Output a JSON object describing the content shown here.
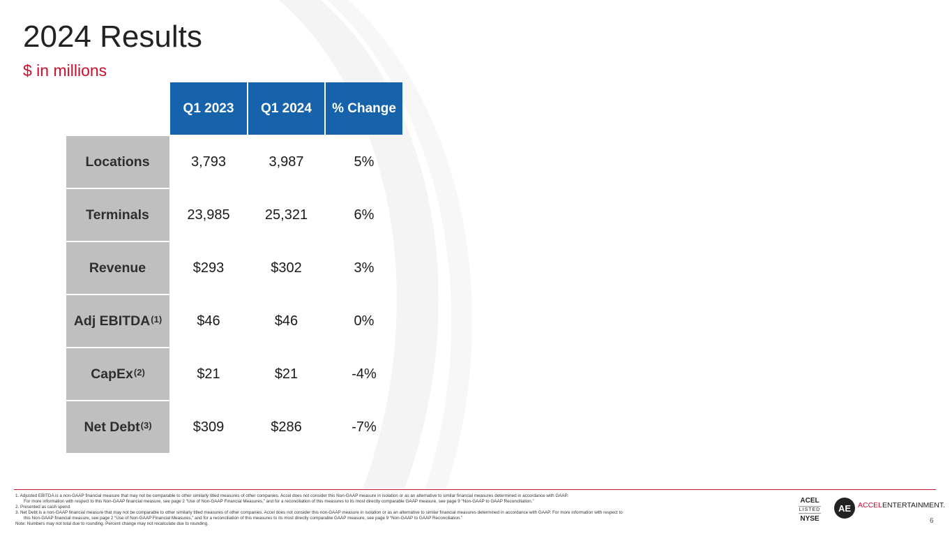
{
  "title": "2024 Results",
  "subtitle": "$ in millions",
  "table": {
    "columns": [
      "Q1 2023",
      "Q1 2024",
      "% Change"
    ],
    "rows": [
      {
        "label": "Locations",
        "sup": "",
        "values": [
          "3,793",
          "3,987",
          "5%"
        ]
      },
      {
        "label": "Terminals",
        "sup": "",
        "values": [
          "23,985",
          "25,321",
          "6%"
        ]
      },
      {
        "label": "Revenue",
        "sup": "",
        "values": [
          "$293",
          "$302",
          "3%"
        ]
      },
      {
        "label": "Adj EBITDA",
        "sup": "(1)",
        "values": [
          "$46",
          "$46",
          "0%"
        ]
      },
      {
        "label": "CapEx",
        "sup": "(2)",
        "values": [
          "$21",
          "$21",
          "-4%"
        ]
      },
      {
        "label": "Net Debt",
        "sup": "(3)",
        "values": [
          "$309",
          "$286",
          "-7%"
        ]
      }
    ]
  },
  "footnotes": {
    "n1a": "1.   Adjusted EBITDA is a non-GAAP financial measure that may not be comparable to other similarly titled measures of other companies. Accel does not consider this Non-GAAP measure in isolation or as an alternative to similar financial measures determined in accordance with GAAP.",
    "n1b": "For more information with respect  to this Non-GAAP financial measure, see page 2 “Use of Non-GAAP Financial Measures,” and for a reconciliation of this measures to its most directly comparable GAAP measure, see page 9 “Non-GAAP to GAAP Reconciliation.”",
    "n2": "2.   Presented as cash spend.",
    "n3a": "3.   Net Debt is a non-GAAP financial measure that may not be comparable to other similarly titled measures of other companies. Accel does not consider this non-GAAP measure in isolation or as an alternative to similar financial measures determined in accordance with GAAP. For more information with respect to",
    "n3b": "this Non-GAAP financial measure, see page 2 “Use of Non-GAAP Financial Measures,” and for a reconciliation of this measures to its most directly comparable GAAP measure, see page 9 “Non-GAAP to GAAP Reconciliation.”",
    "note": "Note: Numbers may not total due to rounding. Percent change may not recalculate due to rounding."
  },
  "branding": {
    "ticker": "ACEL",
    "listed": "LISTED",
    "exchange": "NYSE",
    "logo_mark": "AE",
    "logo_red": "ACCEL",
    "logo_dark": "ENTERTAINMENT."
  },
  "page_number": "6",
  "colors": {
    "header_blue": "#1663ab",
    "accent_red": "#c8102e",
    "label_gray": "#bfbfbf"
  }
}
